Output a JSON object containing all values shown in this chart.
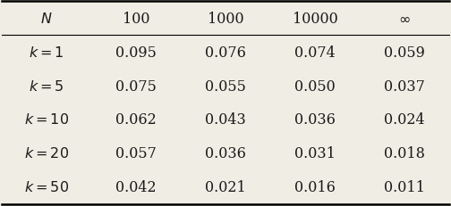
{
  "col_headers": [
    "$N$",
    "100",
    "1000",
    "10000",
    "$\\infty$"
  ],
  "row_labels": [
    "$k = 1$",
    "$k = 5$",
    "$k = 10$",
    "$k = 20$",
    "$k = 50$"
  ],
  "table_data": [
    [
      "0.095",
      "0.076",
      "0.074",
      "0.059"
    ],
    [
      "0.075",
      "0.055",
      "0.050",
      "0.037"
    ],
    [
      "0.062",
      "0.043",
      "0.036",
      "0.024"
    ],
    [
      "0.057",
      "0.036",
      "0.031",
      "0.018"
    ],
    [
      "0.042",
      "0.021",
      "0.016",
      "0.011"
    ]
  ],
  "bg_color": "#f0ede4",
  "text_color": "#1a1a1a",
  "figsize": [
    5.04,
    2.32
  ],
  "dpi": 100,
  "font_size": 11.5
}
